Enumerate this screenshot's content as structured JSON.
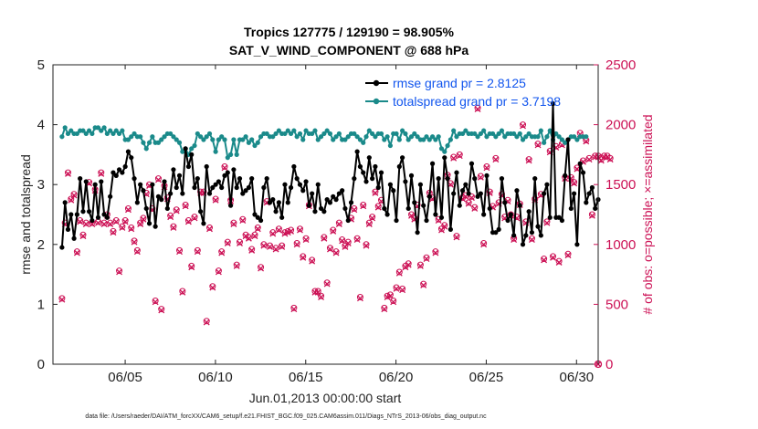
{
  "chart_data": {
    "type": "line",
    "title_line1": "Tropics 127775 / 129190 = 98.905%",
    "title_line2": "SAT_V_WIND_COMPONENT @ 688 hPa",
    "xlabel": "Jun.01,2013 00:00:00 start",
    "ylabel": "rmse and totalspread",
    "y2label": "# of obs: o=possible; ×=assimilated",
    "xlim": [
      1,
      31.2
    ],
    "ylim": [
      0,
      5
    ],
    "y2lim": [
      0,
      2500
    ],
    "x_ticks": [
      5,
      10,
      15,
      20,
      25,
      30
    ],
    "x_tick_labels": [
      "06/05",
      "06/10",
      "06/15",
      "06/20",
      "06/25",
      "06/30"
    ],
    "y_ticks": [
      "0",
      "1",
      "2",
      "3",
      "4",
      "5"
    ],
    "y2_ticks": [
      "0",
      "500",
      "1000",
      "1500",
      "2000",
      "2500"
    ],
    "footer": "data file: /Users/raeder/DAI/ATM_forcXX/CAM6_setup/f.e21.FHIST_BGC.f09_025.CAM6assim.011/Diags_NTrS_2013-06/obs_diag_output.nc",
    "series": [
      {
        "name": "rmse grand pr = 2.8125",
        "color": "#000000",
        "marker": "filled-circle",
        "values": [
          1.95,
          2.7,
          2.25,
          2.5,
          2.1,
          2.5,
          3.1,
          2.55,
          3.05,
          2.55,
          2.4,
          3.0,
          2.45,
          3.05,
          2.5,
          2.45,
          2.8,
          3.2,
          3.15,
          3.25,
          3.2,
          3.3,
          3.55,
          3.45,
          3.1,
          2.7,
          3.0,
          2.9,
          2.6,
          2.35,
          3.0,
          2.3,
          2.8,
          2.75,
          3.05,
          2.6,
          2.85,
          3.25,
          2.95,
          3.15,
          2.85,
          3.6,
          3.3,
          3.5,
          2.95,
          3.1,
          2.55,
          2.35,
          3.3,
          2.85,
          2.95,
          3.0,
          3.05,
          2.95,
          3.15,
          3.2,
          2.65,
          3.25,
          2.95,
          3.1,
          2.85,
          2.9,
          2.95,
          3.1,
          2.5,
          2.45,
          2.4,
          2.95,
          3.1,
          2.7,
          2.75,
          2.55,
          2.7,
          2.45,
          3.0,
          2.7,
          2.95,
          3.3,
          3.1,
          3.0,
          2.9,
          3.05,
          2.65,
          2.85,
          2.55,
          3.0,
          2.6,
          2.55,
          2.75,
          2.7,
          2.8,
          2.75,
          2.85,
          2.9,
          2.6,
          2.4,
          2.7,
          3.1,
          3.55,
          3.3,
          3.2,
          3.05,
          3.45,
          3.1,
          3.3,
          2.95,
          3.2,
          2.6,
          2.5,
          3.0,
          2.9,
          2.4,
          3.3,
          3.45,
          3.05,
          2.6,
          3.15,
          2.7,
          2.2,
          3.0,
          2.65,
          2.4,
          2.8,
          3.35,
          2.5,
          3.1,
          2.45,
          3.45,
          3.1,
          2.25,
          2.85,
          3.2,
          2.65,
          2.9,
          3.0,
          2.85,
          3.35,
          3.1,
          2.8,
          2.85,
          2.5,
          3.15,
          2.6,
          2.2,
          2.2,
          2.25,
          3.1,
          2.7,
          2.4,
          2.5,
          2.15,
          2.9,
          2.65,
          2.0,
          2.15,
          2.55,
          2.2,
          3.1,
          2.3,
          2.15,
          2.85,
          3.0,
          2.45,
          4.35,
          2.45,
          2.45,
          2.4,
          3.15,
          3.75,
          2.6,
          2.85,
          2.0,
          3.35,
          3.2,
          2.7,
          2.85,
          2.95,
          2.6,
          2.75
        ]
      },
      {
        "name": "totalspread grand pr = 3.7198",
        "color": "#1a8a8a",
        "marker": "filled-circle",
        "values": [
          3.8,
          3.95,
          3.85,
          3.9,
          3.85,
          3.85,
          3.9,
          3.9,
          3.85,
          3.9,
          3.85,
          3.95,
          3.95,
          3.9,
          3.95,
          3.85,
          3.9,
          3.85,
          3.9,
          3.85,
          3.9,
          3.75,
          3.75,
          3.8,
          3.85,
          3.8,
          3.8,
          3.7,
          3.6,
          3.7,
          3.8,
          3.7,
          3.7,
          3.75,
          3.8,
          3.85,
          3.85,
          3.8,
          3.75,
          3.7,
          3.55,
          3.6,
          3.5,
          3.6,
          3.65,
          3.85,
          3.8,
          3.75,
          3.8,
          3.85,
          3.75,
          3.55,
          3.75,
          3.8,
          3.75,
          3.45,
          3.5,
          3.75,
          3.5,
          3.75,
          3.75,
          3.8,
          3.7,
          3.75,
          3.65,
          3.7,
          3.8,
          3.85,
          3.85,
          3.8,
          3.8,
          3.85,
          3.9,
          3.85,
          3.85,
          3.9,
          3.85,
          3.9,
          3.8,
          3.85,
          3.75,
          3.9,
          3.85,
          3.85,
          3.9,
          3.75,
          3.8,
          3.85,
          3.9,
          3.85,
          3.75,
          3.8,
          3.85,
          3.75,
          3.75,
          3.8,
          3.85,
          3.85,
          3.8,
          3.75,
          3.7,
          3.8,
          3.9,
          3.85,
          3.8,
          3.85,
          3.85,
          3.75,
          3.8,
          3.65,
          3.85,
          3.85,
          3.75,
          3.9,
          3.85,
          3.75,
          3.8,
          3.85,
          3.8,
          3.75,
          3.75,
          3.8,
          3.75,
          3.8,
          3.75,
          3.8,
          3.6,
          3.55,
          3.65,
          3.75,
          3.9,
          3.8,
          3.85,
          3.85,
          3.9,
          3.85,
          3.85,
          3.85,
          3.8,
          3.85,
          3.9,
          3.8,
          3.85,
          3.85,
          3.8,
          3.85,
          3.9,
          3.8,
          3.85,
          3.85,
          3.85,
          3.8,
          3.85,
          3.75,
          3.8,
          3.85,
          3.8,
          3.8,
          3.8,
          3.9,
          3.7,
          3.8,
          3.9,
          3.75,
          3.85,
          3.8,
          3.75,
          3.7,
          3.75,
          3.8,
          3.8,
          3.75,
          3.8,
          3.8,
          3.8
        ]
      },
      {
        "name": "# obs possible",
        "axis": "right",
        "color": "#cc1155",
        "marker": "circle",
        "values": [
          550,
          1180,
          1600,
          1380,
          1420,
          940,
          1200,
          1080,
          1180,
          1520,
          1180,
          1460,
          1190,
          1600,
          1180,
          1250,
          1180,
          1110,
          1200,
          780,
          1150,
          1200,
          1300,
          1140,
          1030,
          950,
          1180,
          1220,
          1430,
          1500,
          1300,
          530,
          1550,
          460,
          1490,
          1390,
          1240,
          1150,
          1290,
          950,
          610,
          1330,
          1200,
          820,
          1230,
          950,
          1440,
          1440,
          360,
          1140,
          650,
          1380,
          780,
          940,
          1650,
          1020,
          1370,
          1180,
          830,
          1020,
          1210,
          1080,
          1060,
          960,
          1080,
          1140,
          810,
          1000,
          1360,
          990,
          1100,
          970,
          1130,
          990,
          1100,
          1110,
          1120,
          470,
          1010,
          1130,
          900,
          1050,
          1330,
          870,
          610,
          610,
          570,
          1060,
          680,
          970,
          1120,
          940,
          1180,
          1040,
          990,
          1020,
          1220,
          1300,
          1050,
          560,
          1330,
          1000,
          1180,
          1230,
          1440,
          1320,
          1370,
          470,
          570,
          580,
          530,
          640,
          770,
          630,
          820,
          840,
          1250,
          1220,
          1330,
          830,
          670,
          890,
          1430,
          1390,
          940,
          1210,
          1130,
          1160,
          1580,
          1510,
          1730,
          1070,
          1750,
          1390,
          1410,
          1350,
          1400,
          1310,
          2140,
          1570,
          1010,
          1650,
          1440,
          1320,
          1720,
          1350,
          1420,
          1230,
          1370,
          1250,
          1050,
          1230,
          1340,
          2000,
          1190,
          1710,
          1050,
          1380,
          1840,
          1420,
          880,
          1190,
          1780,
          900,
          1820,
          860,
          1840,
          1560,
          920,
          1560,
          1520,
          1640,
          1930,
          1700,
          1870,
          1720,
          1250,
          1740,
          1740,
          1710,
          1740,
          1740,
          1720
        ]
      },
      {
        "name": "# obs assimilated",
        "axis": "right",
        "color": "#cc1155",
        "marker": "cross",
        "values": [
          540,
          1170,
          1590,
          1370,
          1410,
          930,
          1190,
          1070,
          1170,
          1510,
          1170,
          1450,
          1180,
          1590,
          1170,
          1240,
          1170,
          1100,
          1190,
          770,
          1140,
          1190,
          1290,
          1130,
          1020,
          940,
          1170,
          1210,
          1420,
          1490,
          1290,
          520,
          1540,
          450,
          1480,
          1380,
          1230,
          1140,
          1280,
          940,
          600,
          1320,
          1190,
          810,
          1220,
          940,
          1430,
          1430,
          350,
          1130,
          640,
          1370,
          770,
          930,
          1640,
          1010,
          1360,
          1170,
          820,
          1010,
          1200,
          1070,
          1050,
          950,
          1070,
          1130,
          800,
          990,
          1350,
          980,
          1090,
          960,
          1120,
          980,
          1090,
          1100,
          1110,
          460,
          1000,
          1120,
          890,
          1040,
          1320,
          860,
          600,
          600,
          560,
          1050,
          670,
          960,
          1110,
          930,
          1170,
          1030,
          980,
          1010,
          1210,
          1290,
          1040,
          550,
          1320,
          990,
          1170,
          1220,
          1430,
          1310,
          1360,
          460,
          560,
          570,
          520,
          630,
          760,
          620,
          810,
          830,
          1240,
          1210,
          1320,
          820,
          660,
          880,
          1420,
          1380,
          930,
          1200,
          1120,
          1150,
          1570,
          1500,
          1720,
          1060,
          1740,
          1380,
          1400,
          1340,
          1390,
          1300,
          2130,
          1560,
          1000,
          1640,
          1430,
          1310,
          1710,
          1340,
          1410,
          1220,
          1360,
          1240,
          1040,
          1220,
          1330,
          1990,
          1180,
          1700,
          1040,
          1370,
          1830,
          1410,
          870,
          1180,
          1770,
          890,
          1810,
          850,
          1830,
          1550,
          910,
          1550,
          1510,
          1630,
          1920,
          1690,
          1860,
          1710,
          1240,
          1730,
          1730,
          1700,
          1730,
          1730,
          1710
        ]
      }
    ],
    "right_axis_outliers": [
      0
    ]
  }
}
